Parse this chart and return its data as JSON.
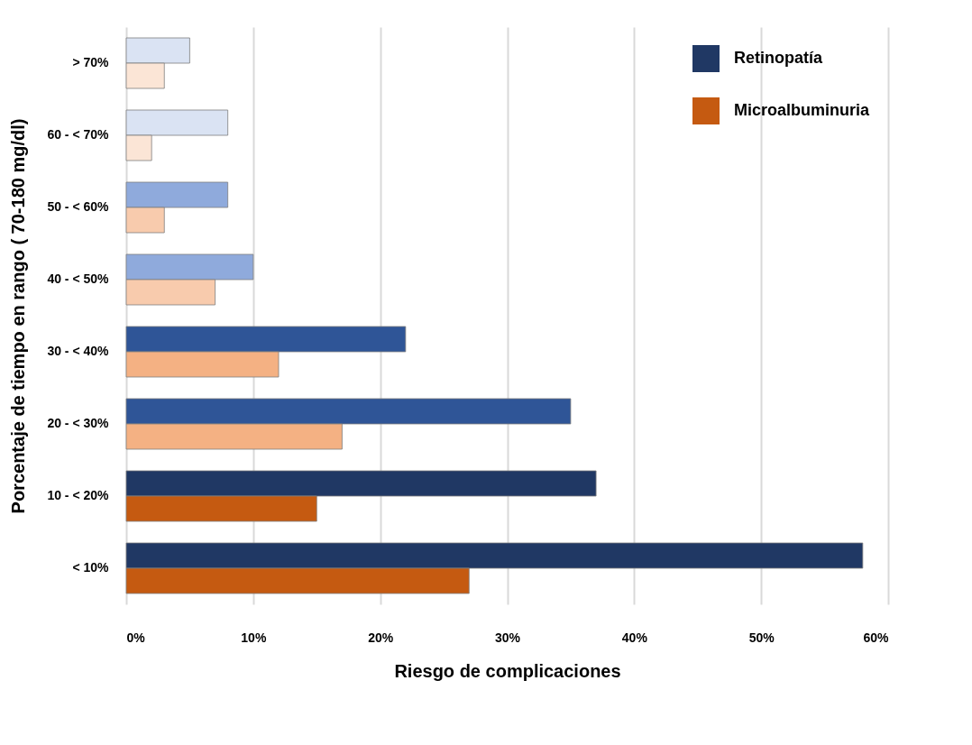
{
  "chart_data": {
    "type": "bar",
    "orientation": "horizontal",
    "xlabel": "Riesgo de complicaciones",
    "ylabel": "Porcentaje de tiempo en rango ( 70-180 mg/dl)",
    "categories": [
      "> 70%",
      "60 -  < 70%",
      "50 -  < 60%",
      "40 -  < 50%",
      "30 -  < 40%",
      "20  - < 30%",
      "10  - < 20%",
      "<  10%"
    ],
    "series": [
      {
        "name": "Retinopatía",
        "color": "#203864",
        "colors": [
          "#dae3f3",
          "#dae3f3",
          "#8faadc",
          "#8faadc",
          "#2f5597",
          "#2f5597",
          "#203864",
          "#203864"
        ],
        "values": [
          5,
          8,
          8,
          10,
          22,
          35,
          37,
          58
        ]
      },
      {
        "name": "Microalbuminuria",
        "color": "#c55a11",
        "colors": [
          "#fbe5d6",
          "#fbe5d6",
          "#f8cbad",
          "#f8cbad",
          "#f4b183",
          "#f4b183",
          "#c55a11",
          "#c55a11"
        ],
        "values": [
          3,
          2,
          3,
          7,
          12,
          17,
          15,
          27
        ]
      }
    ],
    "xlim": [
      0,
      60
    ],
    "xticks": [
      {
        "value": 0,
        "label": "0%"
      },
      {
        "value": 10,
        "label": "10%"
      },
      {
        "value": 20,
        "label": "20%"
      },
      {
        "value": 30,
        "label": "30%"
      },
      {
        "value": 40,
        "label": "40%"
      },
      {
        "value": 50,
        "label": "50%"
      },
      {
        "value": 60,
        "label": "60%"
      }
    ],
    "grid": "x",
    "legend": "top right"
  }
}
